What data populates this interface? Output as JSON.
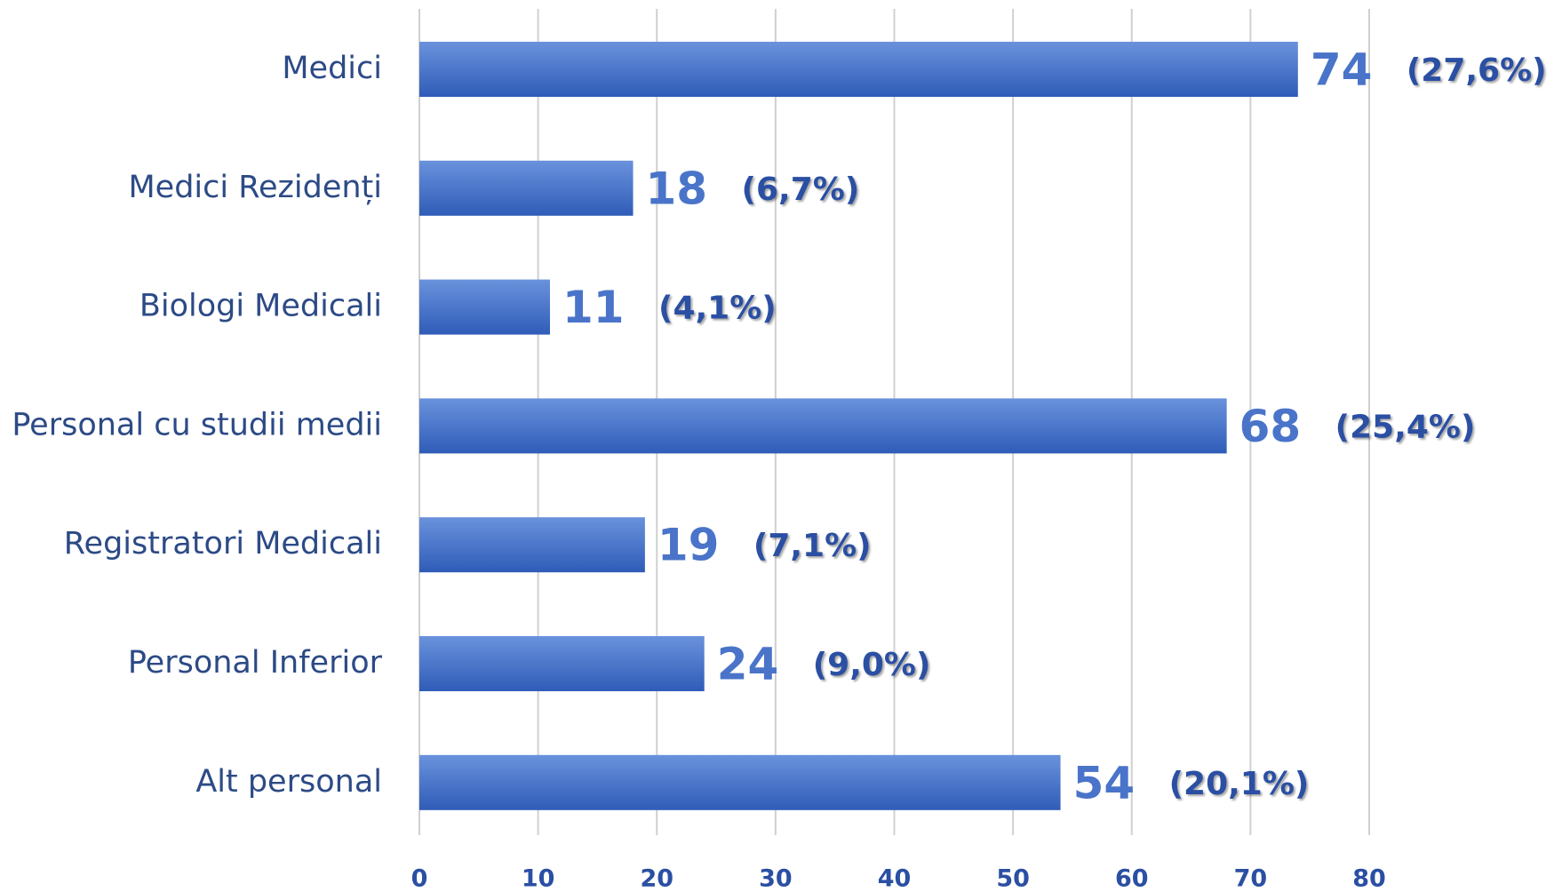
{
  "chart_data": {
    "type": "bar",
    "orientation": "horizontal",
    "categories": [
      "Medici",
      "Medici Rezidenți",
      "Biologi Medicali",
      "Personal cu studii medii",
      "Registratori Medicali",
      "Personal Inferior",
      "Alt personal"
    ],
    "values": [
      74,
      18,
      11,
      68,
      19,
      24,
      54
    ],
    "share_labels": [
      "(27,6%)",
      "(6,7%)",
      "(4,1%)",
      "(25,4%)",
      "(7,1%)",
      "(9,0%)",
      "(20,1%)"
    ],
    "color": "#4472c4",
    "xlim": [
      0,
      80
    ],
    "xticks": [
      0,
      10,
      20,
      30,
      40,
      50,
      60,
      70,
      80
    ],
    "grid": true
  }
}
